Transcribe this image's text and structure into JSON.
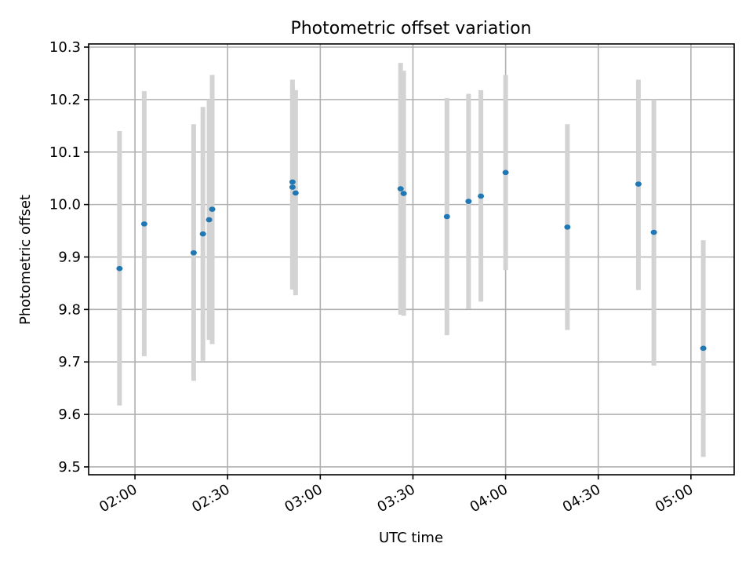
{
  "chart_data": {
    "type": "scatter",
    "title": "Photometric offset variation",
    "xlabel": "UTC time",
    "ylabel": "Photometric offset",
    "x_tick_labels": [
      "02:00",
      "02:30",
      "03:00",
      "03:30",
      "04:00",
      "04:30",
      "05:00"
    ],
    "y_tick_labels": [
      "9.5",
      "9.6",
      "9.7",
      "9.8",
      "9.9",
      "10.0",
      "10.1",
      "10.2",
      "10.3"
    ],
    "xlim": [
      "01:45",
      "05:14"
    ],
    "ylim": [
      9.485,
      10.306
    ],
    "grid": true,
    "marker_color": "#1f77b4",
    "errorbar_color": "#d3d3d3",
    "points": [
      {
        "x": "01:55",
        "y": 9.878,
        "y_low": 9.617,
        "y_high": 10.14
      },
      {
        "x": "02:03",
        "y": 9.963,
        "y_low": 9.711,
        "y_high": 10.216
      },
      {
        "x": "02:19",
        "y": 9.908,
        "y_low": 9.664,
        "y_high": 10.153
      },
      {
        "x": "02:22",
        "y": 9.944,
        "y_low": 9.702,
        "y_high": 10.186
      },
      {
        "x": "02:24",
        "y": 9.971,
        "y_low": 9.742,
        "y_high": 10.2
      },
      {
        "x": "02:25",
        "y": 9.991,
        "y_low": 9.734,
        "y_high": 10.247
      },
      {
        "x": "02:51",
        "y": 10.043,
        "y_low": 9.846,
        "y_high": 10.238
      },
      {
        "x": "02:51",
        "y": 10.033,
        "y_low": 9.838,
        "y_high": 10.228
      },
      {
        "x": "02:52",
        "y": 10.022,
        "y_low": 9.827,
        "y_high": 10.218
      },
      {
        "x": "03:26",
        "y": 10.03,
        "y_low": 9.79,
        "y_high": 10.27
      },
      {
        "x": "03:27",
        "y": 10.021,
        "y_low": 9.788,
        "y_high": 10.255
      },
      {
        "x": "03:41",
        "y": 9.977,
        "y_low": 9.751,
        "y_high": 10.203
      },
      {
        "x": "03:48",
        "y": 10.006,
        "y_low": 9.801,
        "y_high": 10.211
      },
      {
        "x": "03:52",
        "y": 10.016,
        "y_low": 9.815,
        "y_high": 10.218
      },
      {
        "x": "04:00",
        "y": 10.061,
        "y_low": 9.875,
        "y_high": 10.247
      },
      {
        "x": "04:20",
        "y": 9.957,
        "y_low": 9.761,
        "y_high": 10.153
      },
      {
        "x": "04:43",
        "y": 10.039,
        "y_low": 9.837,
        "y_high": 10.238
      },
      {
        "x": "04:48",
        "y": 9.947,
        "y_low": 9.693,
        "y_high": 10.2
      },
      {
        "x": "05:04",
        "y": 9.726,
        "y_low": 9.519,
        "y_high": 9.932
      }
    ]
  }
}
